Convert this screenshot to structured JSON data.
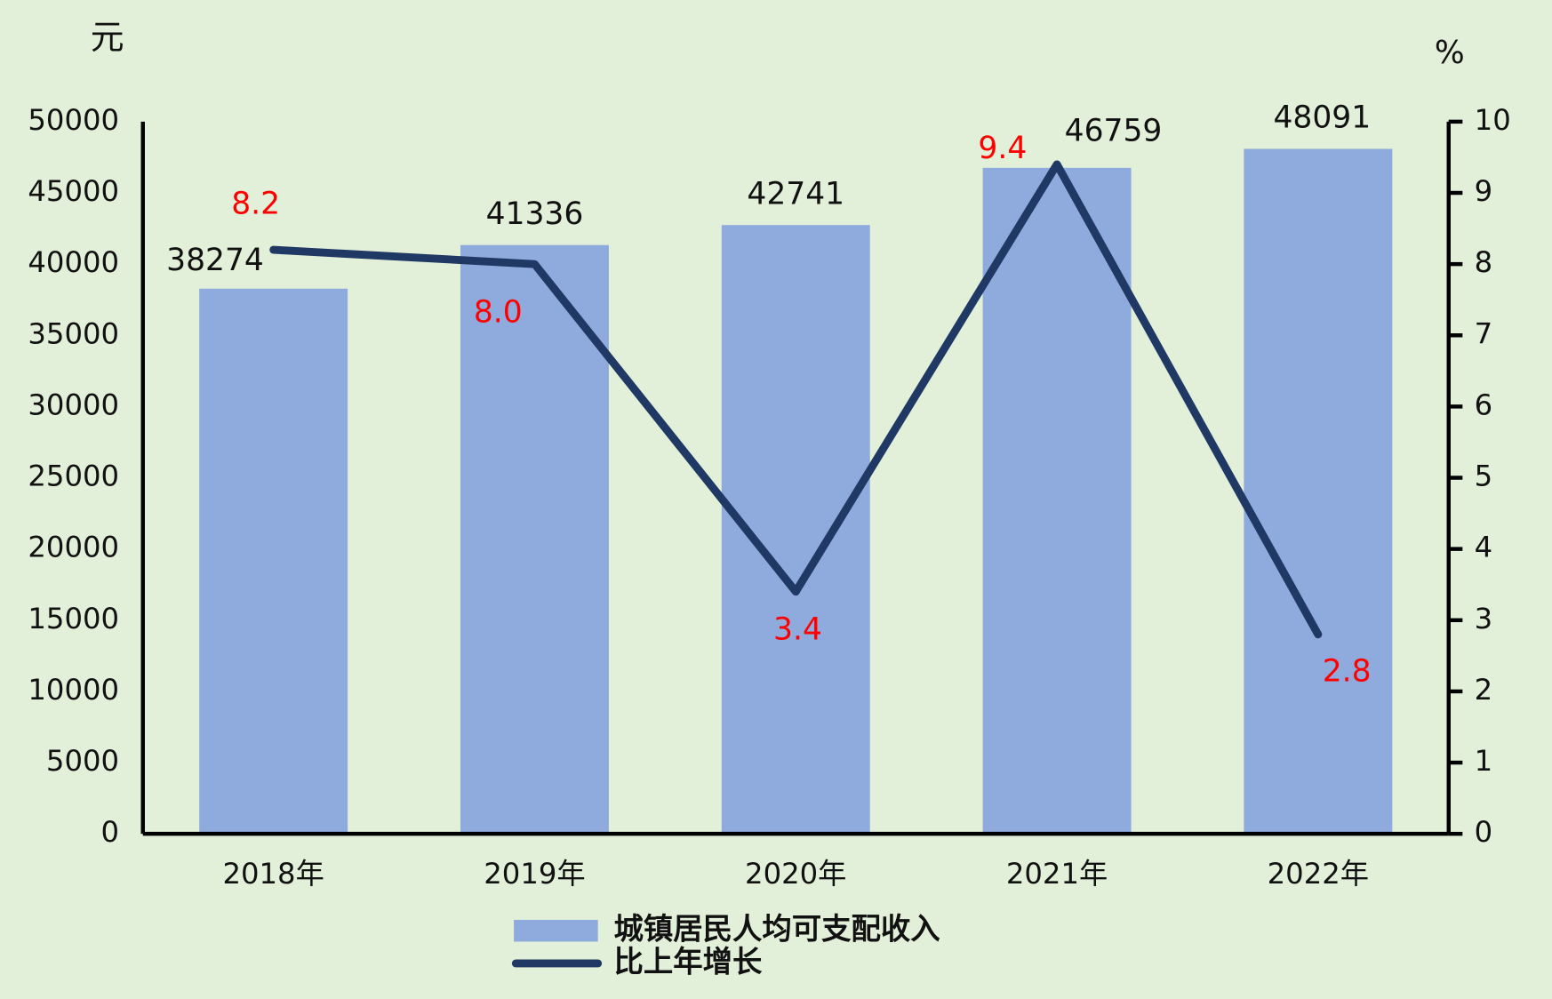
{
  "chart_data": {
    "type": "bar_line",
    "y_unit": "元",
    "y2_unit": "%",
    "categories": [
      "2018年",
      "2019年",
      "2020年",
      "2021年",
      "2022年"
    ],
    "series": [
      {
        "name": "城镇居民人均可支配收入",
        "type": "bar",
        "color": "#8faadc",
        "values": [
          38274,
          41336,
          42741,
          46759,
          48091
        ]
      },
      {
        "name": "比上年增长",
        "type": "line",
        "axis": "y2",
        "color": "#203864",
        "values": [
          8.2,
          8.0,
          3.4,
          9.4,
          2.8
        ],
        "value_labels": [
          "8.2",
          "8.0",
          "3.4",
          "9.4",
          "2.8"
        ],
        "label_color": "#ff0000"
      }
    ],
    "ylim": [
      0,
      50000
    ],
    "yticks": [
      0,
      5000,
      10000,
      15000,
      20000,
      25000,
      30000,
      35000,
      40000,
      45000,
      50000
    ],
    "y2lim": [
      0,
      10
    ],
    "y2ticks": [
      0,
      1,
      2,
      3,
      4,
      5,
      6,
      7,
      8,
      9,
      10
    ],
    "grid": false
  }
}
